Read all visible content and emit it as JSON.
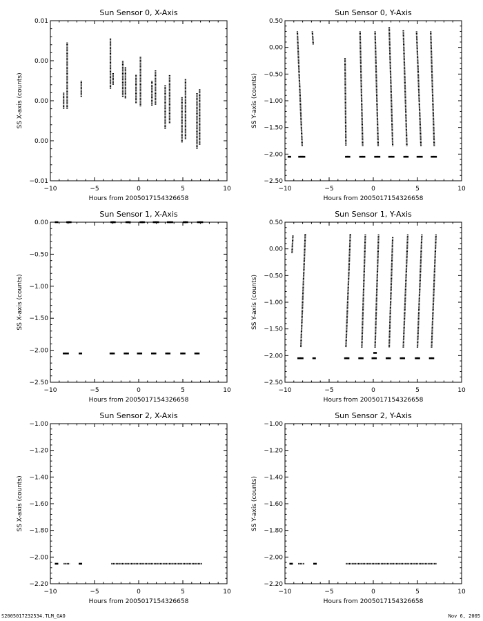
{
  "footer": {
    "left": "S2005017232534.TLM_GAO",
    "right": "Nov  6, 2005"
  },
  "chart_data": [
    {
      "type": "scatter",
      "title": "Sun Sensor 0, X-Axis",
      "xlabel": "Hours from 2005017154326658",
      "ylabel": "SS X-axis (counts)",
      "xlim": [
        -10,
        10
      ],
      "ylim": [
        -0.01,
        0.01
      ],
      "xticks": [
        -10,
        -5,
        0,
        5,
        10
      ],
      "yticks": [
        -0.01,
        -0.005,
        0,
        0.005,
        0.01
      ],
      "ytick_labels": [
        "-0.01",
        "0.00",
        "0.00",
        "0.00",
        "0.01"
      ],
      "grid": false,
      "segments": [
        {
          "x": -8.5,
          "y0": -0.001,
          "y1": 0.001
        },
        {
          "x": -8.1,
          "y0": -0.001,
          "y1": 0.0073
        },
        {
          "x": -6.5,
          "y0": 0.0005,
          "y1": 0.0025
        },
        {
          "x": -3.2,
          "y0": 0.0015,
          "y1": 0.0078
        },
        {
          "x": -2.9,
          "y0": 0.002,
          "y1": 0.0035
        },
        {
          "x": -1.8,
          "y0": 0.0005,
          "y1": 0.005
        },
        {
          "x": -1.5,
          "y0": 0.0003,
          "y1": 0.0042
        },
        {
          "x": -0.3,
          "y0": -0.0003,
          "y1": 0.0033
        },
        {
          "x": 0.2,
          "y0": -0.0007,
          "y1": 0.0055
        },
        {
          "x": 1.5,
          "y0": -0.0006,
          "y1": 0.0025
        },
        {
          "x": 1.9,
          "y0": -0.0005,
          "y1": 0.0038
        },
        {
          "x": 3.0,
          "y0": -0.0035,
          "y1": 0.002
        },
        {
          "x": 3.5,
          "y0": -0.0028,
          "y1": 0.0032
        },
        {
          "x": 4.9,
          "y0": -0.0052,
          "y1": 0.0005
        },
        {
          "x": 5.3,
          "y0": -0.0048,
          "y1": 0.0027
        },
        {
          "x": 6.6,
          "y0": -0.006,
          "y1": 0.001
        },
        {
          "x": 6.9,
          "y0": -0.0055,
          "y1": 0.0015
        }
      ],
      "points": []
    },
    {
      "type": "scatter",
      "title": "Sun Sensor 0, Y-Axis",
      "xlabel": "Hours from 2005017154326658",
      "ylabel": "SS Y-axis (counts)",
      "xlim": [
        -10,
        10
      ],
      "ylim": [
        -2.5,
        0.5
      ],
      "xticks": [
        -10,
        -5,
        0,
        5,
        10
      ],
      "yticks": [
        -2.5,
        -2.0,
        -1.5,
        -1.0,
        -0.5,
        0.0,
        0.5
      ],
      "ytick_labels": [
        "-2.50",
        "-2.00",
        "-1.50",
        "-1.00",
        "-0.50",
        "0.00",
        "0.50"
      ],
      "grid": false,
      "segments": [
        {
          "x0": -8.6,
          "y0": 0.3,
          "x1": -8.05,
          "y1": -1.85
        },
        {
          "x0": -6.9,
          "y0": 0.3,
          "x1": -6.8,
          "y1": 0.05
        },
        {
          "x0": -3.2,
          "y0": -0.2,
          "x1": -3.1,
          "y1": -1.85
        },
        {
          "x0": -1.5,
          "y0": 0.3,
          "x1": -1.2,
          "y1": -1.85
        },
        {
          "x0": 0.2,
          "y0": 0.3,
          "x1": 0.55,
          "y1": -1.85
        },
        {
          "x0": 1.8,
          "y0": 0.38,
          "x1": 2.2,
          "y1": -1.85
        },
        {
          "x0": 3.4,
          "y0": 0.32,
          "x1": 3.8,
          "y1": -1.85
        },
        {
          "x0": 4.9,
          "y0": 0.3,
          "x1": 5.4,
          "y1": -1.85
        },
        {
          "x0": 6.5,
          "y0": 0.3,
          "x1": 6.9,
          "y1": -1.85
        }
      ],
      "points": [
        {
          "x": -9.5,
          "y": -2.05
        },
        {
          "x": -8.3,
          "y": -2.05
        },
        {
          "x": -8.1,
          "y": -2.05
        },
        {
          "x": -7.9,
          "y": -2.05
        },
        {
          "x": -3.0,
          "y": -2.05
        },
        {
          "x": -2.8,
          "y": -2.05
        },
        {
          "x": -1.4,
          "y": -2.05
        },
        {
          "x": -1.1,
          "y": -2.05
        },
        {
          "x": 0.3,
          "y": -2.05
        },
        {
          "x": 0.6,
          "y": -2.05
        },
        {
          "x": 1.9,
          "y": -2.05
        },
        {
          "x": 2.2,
          "y": -2.05
        },
        {
          "x": 3.6,
          "y": -2.05
        },
        {
          "x": 3.8,
          "y": -2.05
        },
        {
          "x": 5.1,
          "y": -2.05
        },
        {
          "x": 5.4,
          "y": -2.05
        },
        {
          "x": 6.7,
          "y": -2.05
        },
        {
          "x": 7.0,
          "y": -2.05
        }
      ]
    },
    {
      "type": "scatter",
      "title": "Sun Sensor 1, X-Axis",
      "xlabel": "Hours from 2005017154326658",
      "ylabel": "SS X-axis (counts)",
      "xlim": [
        -10,
        10
      ],
      "ylim": [
        -2.5,
        0.0
      ],
      "xticks": [
        -10,
        -5,
        0,
        5,
        10
      ],
      "yticks": [
        -2.5,
        -2.0,
        -1.5,
        -1.0,
        -0.5,
        0.0
      ],
      "ytick_labels": [
        "-2.50",
        "-2.00",
        "-1.50",
        "-1.00",
        "-0.50",
        "0.00"
      ],
      "grid": false,
      "segments": [],
      "points": [
        {
          "x": -9.3,
          "y": 0.0
        },
        {
          "x": -8.0,
          "y": 0.0
        },
        {
          "x": -7.8,
          "y": 0.0
        },
        {
          "x": -3.0,
          "y": 0.0
        },
        {
          "x": -2.8,
          "y": 0.0
        },
        {
          "x": -1.3,
          "y": 0.0
        },
        {
          "x": -1.1,
          "y": 0.0
        },
        {
          "x": 0.3,
          "y": 0.0
        },
        {
          "x": 0.5,
          "y": 0.0
        },
        {
          "x": 1.8,
          "y": 0.0
        },
        {
          "x": 2.1,
          "y": 0.0
        },
        {
          "x": 3.4,
          "y": 0.0
        },
        {
          "x": 3.7,
          "y": 0.0
        },
        {
          "x": 5.2,
          "y": 0.0
        },
        {
          "x": 5.4,
          "y": 0.0
        },
        {
          "x": 6.8,
          "y": 0.0
        },
        {
          "x": 7.1,
          "y": 0.0
        },
        {
          "x": -8.4,
          "y": -2.05
        },
        {
          "x": -8.1,
          "y": -2.05
        },
        {
          "x": -6.6,
          "y": -2.05
        },
        {
          "x": -3.1,
          "y": -2.05
        },
        {
          "x": -2.9,
          "y": -2.05
        },
        {
          "x": -1.5,
          "y": -2.05
        },
        {
          "x": -1.3,
          "y": -2.05
        },
        {
          "x": 0.0,
          "y": -2.05
        },
        {
          "x": 0.2,
          "y": -2.05
        },
        {
          "x": 1.6,
          "y": -2.05
        },
        {
          "x": 1.8,
          "y": -2.05
        },
        {
          "x": 3.2,
          "y": -2.05
        },
        {
          "x": 3.4,
          "y": -2.05
        },
        {
          "x": 4.9,
          "y": -2.05
        },
        {
          "x": 5.1,
          "y": -2.05
        },
        {
          "x": 6.5,
          "y": -2.05
        },
        {
          "x": 6.7,
          "y": -2.05
        }
      ]
    },
    {
      "type": "scatter",
      "title": "Sun Sensor 1, Y-Axis",
      "xlabel": "Hours from 2005017154326658",
      "ylabel": "SS Y-axis (counts)",
      "xlim": [
        -10,
        10
      ],
      "ylim": [
        -2.5,
        0.5
      ],
      "xticks": [
        -10,
        -5,
        0,
        5,
        10
      ],
      "yticks": [
        -2.5,
        -2.0,
        -1.5,
        -1.0,
        -0.5,
        0.0,
        0.5
      ],
      "ytick_labels": [
        "-2.50",
        "-2.00",
        "-1.50",
        "-1.00",
        "-0.50",
        "0.00",
        "0.50"
      ],
      "grid": false,
      "segments": [
        {
          "x0": -9.2,
          "y0": -0.08,
          "x1": -9.1,
          "y1": 0.25
        },
        {
          "x0": -7.7,
          "y0": 0.28,
          "x1": -8.2,
          "y1": -1.85
        },
        {
          "x0": -2.6,
          "y0": 0.28,
          "x1": -3.1,
          "y1": -1.85
        },
        {
          "x0": -0.9,
          "y0": 0.27,
          "x1": -1.3,
          "y1": -1.85
        },
        {
          "x0": 0.6,
          "y0": 0.27,
          "x1": 0.2,
          "y1": -1.85
        },
        {
          "x0": 2.2,
          "y0": 0.22,
          "x1": 1.8,
          "y1": -1.85
        },
        {
          "x0": 3.9,
          "y0": 0.27,
          "x1": 3.4,
          "y1": -1.85
        },
        {
          "x0": 5.5,
          "y0": 0.27,
          "x1": 5.0,
          "y1": -1.85
        },
        {
          "x0": 7.1,
          "y0": 0.27,
          "x1": 6.6,
          "y1": -1.85
        }
      ],
      "points": [
        {
          "x": -8.4,
          "y": -2.05
        },
        {
          "x": -8.1,
          "y": -2.05
        },
        {
          "x": -6.7,
          "y": -2.05
        },
        {
          "x": -3.1,
          "y": -2.05
        },
        {
          "x": -2.9,
          "y": -2.05
        },
        {
          "x": -1.5,
          "y": -2.05
        },
        {
          "x": -1.3,
          "y": -2.05
        },
        {
          "x": 0.0,
          "y": -2.05
        },
        {
          "x": 0.2,
          "y": -2.05
        },
        {
          "x": 0.2,
          "y": -1.95
        },
        {
          "x": 1.6,
          "y": -2.05
        },
        {
          "x": 1.8,
          "y": -2.05
        },
        {
          "x": 3.2,
          "y": -2.05
        },
        {
          "x": 3.4,
          "y": -2.05
        },
        {
          "x": 4.9,
          "y": -2.05
        },
        {
          "x": 5.1,
          "y": -2.05
        },
        {
          "x": 6.5,
          "y": -2.05
        },
        {
          "x": 6.7,
          "y": -2.05
        }
      ]
    },
    {
      "type": "scatter",
      "title": "Sun Sensor 2, X-Axis",
      "xlabel": "Hours from 2005017154326658",
      "ylabel": "SS X-axis (counts)",
      "xlim": [
        -10,
        10
      ],
      "ylim": [
        -2.2,
        -1.0
      ],
      "xticks": [
        -10,
        -5,
        0,
        5,
        10
      ],
      "yticks": [
        -2.2,
        -2.0,
        -1.8,
        -1.6,
        -1.4,
        -1.2,
        -1.0
      ],
      "ytick_labels": [
        "-2.20",
        "-2.00",
        "-1.80",
        "-1.60",
        "-1.40",
        "-1.20",
        "-1.00"
      ],
      "grid": false,
      "segments": [
        {
          "x0": -8.5,
          "y0": -2.05,
          "x1": -7.8,
          "y1": -2.05
        },
        {
          "x0": -3.1,
          "y0": -2.05,
          "x1": 7.2,
          "y1": -2.05
        }
      ],
      "points": [
        {
          "x": -9.3,
          "y": -2.05
        },
        {
          "x": -6.6,
          "y": -2.05
        }
      ]
    },
    {
      "type": "scatter",
      "title": "Sun Sensor 2, Y-Axis",
      "xlabel": "Hours from 2005017154326658",
      "ylabel": "SS Y-axis (counts)",
      "xlim": [
        -10,
        10
      ],
      "ylim": [
        -2.2,
        -1.0
      ],
      "xticks": [
        -10,
        -5,
        0,
        5,
        10
      ],
      "yticks": [
        -2.2,
        -2.0,
        -1.8,
        -1.6,
        -1.4,
        -1.2,
        -1.0
      ],
      "ytick_labels": [
        "-2.20",
        "-2.00",
        "-1.80",
        "-1.60",
        "-1.40",
        "-1.20",
        "-1.00"
      ],
      "grid": false,
      "segments": [
        {
          "x0": -8.5,
          "y0": -2.05,
          "x1": -7.8,
          "y1": -2.05
        },
        {
          "x0": -3.1,
          "y0": -2.05,
          "x1": 7.2,
          "y1": -2.05
        }
      ],
      "points": [
        {
          "x": -9.3,
          "y": -2.05
        },
        {
          "x": -6.6,
          "y": -2.05
        }
      ]
    }
  ]
}
